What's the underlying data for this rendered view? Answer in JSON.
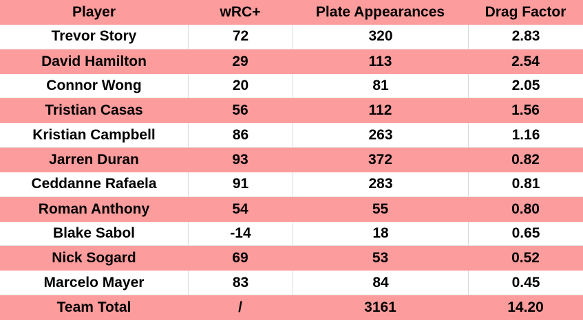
{
  "table": {
    "header": [
      "Player",
      "wRC+",
      "Plate Appearances",
      "Drag Factor"
    ],
    "rows": [
      [
        "Trevor Story",
        "72",
        "320",
        "2.83"
      ],
      [
        "David Hamilton",
        "29",
        "113",
        "2.54"
      ],
      [
        "Connor Wong",
        "20",
        "81",
        "2.05"
      ],
      [
        "Tristian Casas",
        "56",
        "112",
        "1.56"
      ],
      [
        "Kristian Campbell",
        "86",
        "263",
        "1.16"
      ],
      [
        "Jarren Duran",
        "93",
        "372",
        "0.82"
      ],
      [
        "Ceddanne Rafaela",
        "91",
        "283",
        "0.81"
      ],
      [
        "Roman Anthony",
        "54",
        "55",
        "0.80"
      ],
      [
        "Blake Sabol",
        "-14",
        "18",
        "0.65"
      ],
      [
        "Nick Sogard",
        "69",
        "53",
        "0.52"
      ],
      [
        "Marcelo Mayer",
        "83",
        "84",
        "0.45"
      ],
      [
        "Team Total",
        "/",
        "3161",
        "14.20"
      ]
    ]
  }
}
